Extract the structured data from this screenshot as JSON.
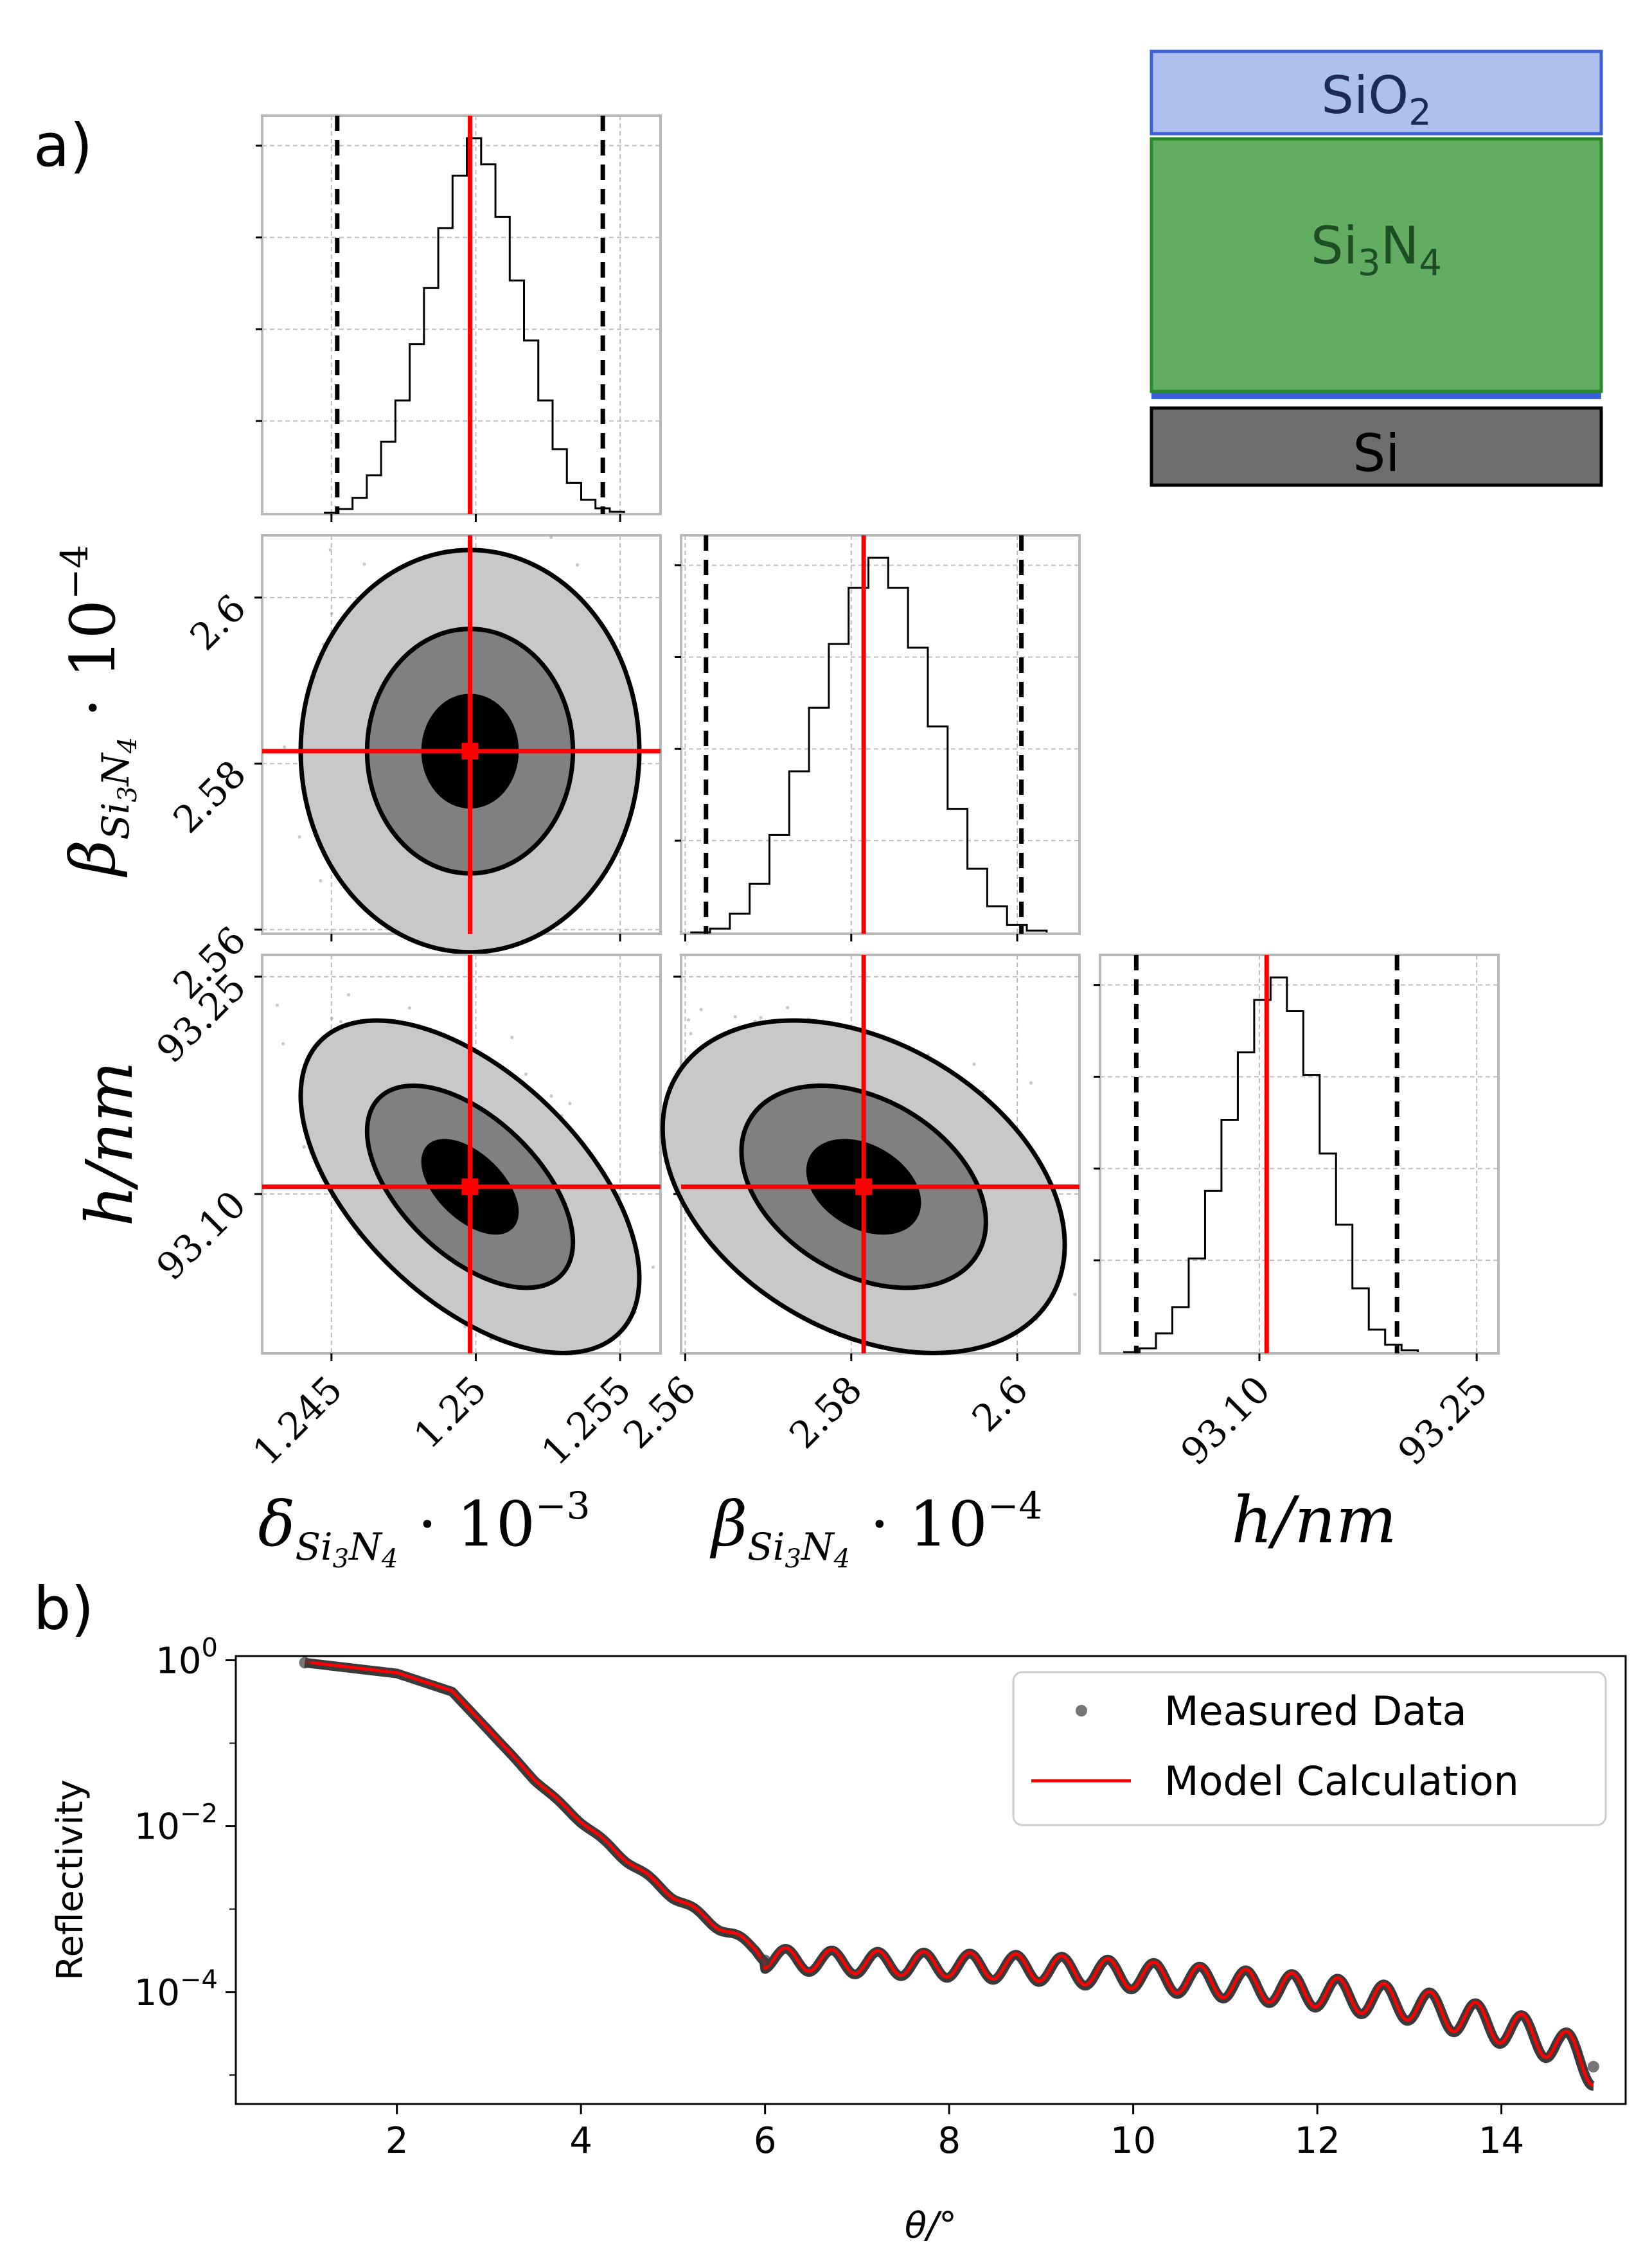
{
  "panels": {
    "a_label": "a)",
    "b_label": "b)"
  },
  "layer_stack": {
    "layers": [
      {
        "name": "SiO",
        "sub": "2",
        "fill": "#aec0ee",
        "stroke": "#3b62d8",
        "text_color": "#1b2a57"
      },
      {
        "name": "Si",
        "sub": "3",
        "name2": "N",
        "sub2": "4",
        "fill": "#62ad62",
        "stroke": "#2a8a2a",
        "text_color": "#1d4d22"
      },
      {
        "name": "Si",
        "fill": "#6e6e6e",
        "stroke": "#000000",
        "text_color": "#000000"
      }
    ]
  },
  "corner_params": [
    {
      "symbol": "δ",
      "sub": "Si",
      "sub2": "3",
      "sub3": "N",
      "sub4": "4",
      "exp": "−3",
      "label_tail": " · 10"
    },
    {
      "symbol": "β",
      "sub": "Si",
      "sub2": "3",
      "sub3": "N",
      "sub4": "4",
      "exp": "−4",
      "label_tail": " · 10"
    },
    {
      "symbol": "h/nm"
    }
  ],
  "chart_data": [
    {
      "type": "corner",
      "title": "",
      "parameters": [
        {
          "name": "delta_Si3N4",
          "scale": "1e-3",
          "best_fit": 1.2498,
          "ci_low": 1.2452,
          "ci_high": 1.2544,
          "range": [
            1.2426,
            1.2564
          ],
          "ticks": [
            "1.245",
            "1.25",
            "1.255"
          ],
          "tick_values": [
            1.245,
            1.25,
            1.255
          ]
        },
        {
          "name": "beta_Si3N4",
          "scale": "1e-4",
          "best_fit": 2.5815,
          "ci_low": 2.5625,
          "ci_high": 2.6005,
          "range": [
            2.5595,
            2.6075
          ],
          "ticks": [
            "2.56",
            "2.58",
            "2.6"
          ],
          "tick_values": [
            2.56,
            2.58,
            2.6
          ]
        },
        {
          "name": "h_nm",
          "scale": "1",
          "best_fit": 93.105,
          "ci_low": 93.015,
          "ci_high": 93.195,
          "range": [
            92.99,
            93.265
          ],
          "ticks": [
            "93.10",
            "93.25"
          ],
          "tick_values": [
            93.1,
            93.25
          ]
        }
      ],
      "histograms": {
        "delta_Si3N4": [
          0.0,
          0.01,
          0.04,
          0.1,
          0.19,
          0.3,
          0.45,
          0.6,
          0.76,
          0.9,
          1.0,
          0.93,
          0.79,
          0.62,
          0.46,
          0.3,
          0.17,
          0.08,
          0.035,
          0.012,
          0.003
        ],
        "beta_Si3N4": [
          0.0,
          0.01,
          0.05,
          0.13,
          0.26,
          0.43,
          0.6,
          0.77,
          0.92,
          1.0,
          0.92,
          0.76,
          0.55,
          0.33,
          0.17,
          0.07,
          0.02,
          0.005
        ],
        "h_nm": [
          0.0,
          0.01,
          0.05,
          0.12,
          0.25,
          0.43,
          0.62,
          0.8,
          0.94,
          1.0,
          0.91,
          0.74,
          0.53,
          0.34,
          0.17,
          0.06,
          0.02,
          0.005
        ]
      },
      "correlations": {
        "delta_beta": 0.0,
        "delta_h": -0.55,
        "beta_h": -0.35
      },
      "contour_levels": [
        "39%",
        "86%",
        "99%"
      ],
      "marker_color": "#ff0000",
      "ci_line_style": "dashed"
    },
    {
      "type": "line",
      "title": "",
      "xlabel": "θ/°",
      "ylabel": "Reflectivity",
      "xlim": [
        0.25,
        15.35
      ],
      "ylim_log10": [
        -5.35,
        0.05
      ],
      "xticks": [
        2,
        4,
        6,
        8,
        10,
        12,
        14
      ],
      "ytick_exponents": [
        0,
        -2,
        -4
      ],
      "ytick_base": "10",
      "legend_position": "top-right",
      "series": [
        {
          "name": "Measured Data",
          "style": "markers",
          "color": "#3a3a3a"
        },
        {
          "name": "Model Calculation",
          "style": "line",
          "color": "#ff0000"
        }
      ],
      "x_range": [
        1.0,
        15.0
      ],
      "anchor_points_log10": [
        [
          1.0,
          -0.03
        ],
        [
          2.0,
          -0.16
        ],
        [
          2.6,
          -0.38
        ],
        [
          3.0,
          -0.85
        ],
        [
          3.5,
          -1.45
        ],
        [
          4.0,
          -1.95
        ],
        [
          4.5,
          -2.42
        ],
        [
          5.0,
          -2.85
        ],
        [
          5.5,
          -3.22
        ],
        [
          5.9,
          -3.48
        ],
        [
          6.0,
          -3.6
        ],
        [
          7.0,
          -3.65
        ],
        [
          8.0,
          -3.68
        ],
        [
          9.0,
          -3.72
        ],
        [
          10.0,
          -3.8
        ],
        [
          11.0,
          -3.9
        ],
        [
          12.0,
          -4.0
        ],
        [
          13.0,
          -4.15
        ],
        [
          14.0,
          -4.42
        ],
        [
          14.6,
          -4.62
        ],
        [
          15.0,
          -4.92
        ]
      ],
      "fringe_period_deg": 0.5,
      "fringe_amplitude_log10": 0.13
    }
  ]
}
